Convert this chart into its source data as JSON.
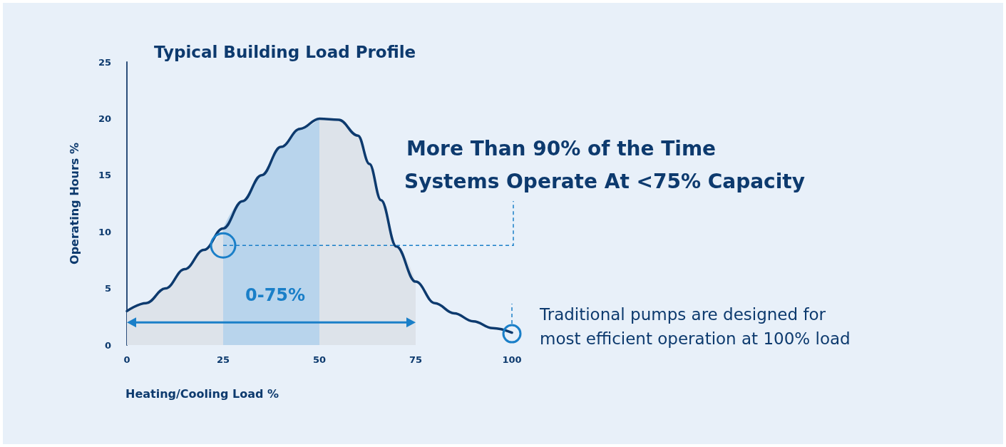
{
  "chart_data": {
    "type": "line",
    "title": "Typical Building Load Profile",
    "xlabel": "Heating/Cooling Load %",
    "ylabel": "Operating Hours %",
    "xlim": [
      0,
      100
    ],
    "xticks": [
      0,
      25,
      50,
      75,
      100
    ],
    "ylim": [
      0,
      25
    ],
    "yticks": [
      0,
      5,
      10,
      15,
      20,
      25
    ],
    "grid": false,
    "marker": "none",
    "line_style": "solid",
    "series": [
      {
        "type": "area",
        "color": "#dde3ea",
        "x": [
          0,
          5,
          10,
          15,
          20,
          25
        ],
        "values": [
          3.0,
          3.7,
          5.0,
          6.7,
          8.4,
          10.3
        ]
      },
      {
        "type": "area",
        "color": "#b8d4ec",
        "x": [
          25,
          30,
          35,
          40,
          45,
          50
        ],
        "values": [
          10.3,
          12.7,
          15.0,
          17.5,
          19.1,
          20.0
        ]
      },
      {
        "type": "area",
        "color": "#dde3ea",
        "x": [
          50,
          55,
          60,
          63,
          66,
          70,
          75
        ],
        "values": [
          20.0,
          19.9,
          18.5,
          16.0,
          12.8,
          8.7,
          5.6
        ]
      },
      {
        "color": "#0d3a6e",
        "x": [
          0,
          5,
          10,
          15,
          20,
          25,
          30,
          35,
          40,
          45,
          50,
          55,
          60,
          63,
          66,
          70,
          75,
          80,
          85,
          90,
          95,
          100
        ],
        "values": [
          3.0,
          3.7,
          5.0,
          6.7,
          8.4,
          10.3,
          12.7,
          15.0,
          17.5,
          19.1,
          20.0,
          19.9,
          18.5,
          16.0,
          12.8,
          8.7,
          5.6,
          3.7,
          2.8,
          2.1,
          1.5,
          1.1
        ]
      }
    ],
    "annotations": [
      "0-75%",
      "More Than 90% of the Time",
      "Systems Operate At <75% Capacity",
      "Traditional pumps are designed for\nmost efficient operation at 100% load"
    ]
  }
}
